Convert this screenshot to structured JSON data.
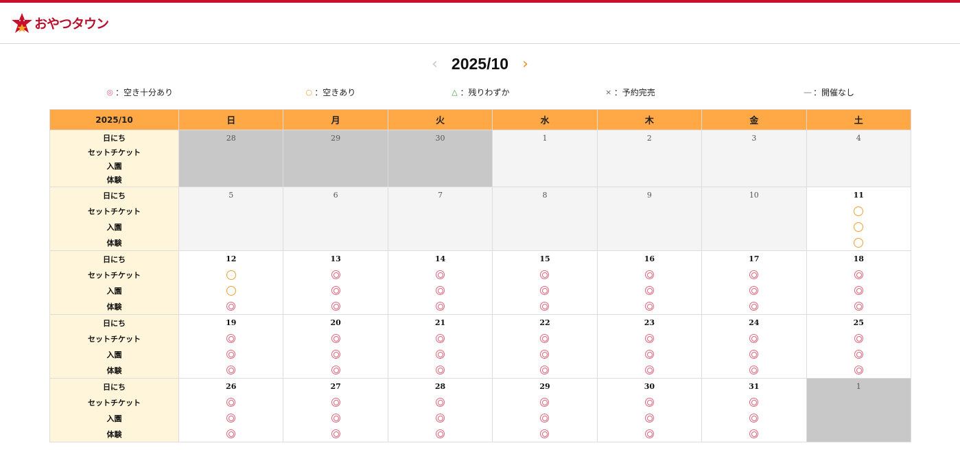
{
  "brand": {
    "name": "おやつタウン",
    "color": "#b8122e"
  },
  "nav": {
    "month": "2025/10",
    "prev_icon": "chevron-left-icon",
    "next_icon": "chevron-right-icon"
  },
  "legend": [
    {
      "symbol": "◎",
      "text": "：空き十分あり",
      "color": "#e0647a"
    },
    {
      "symbol": "○",
      "text": "：空きあり",
      "color": "#f0a030"
    },
    {
      "symbol": "△",
      "text": "：残りわずか",
      "color": "#3aa040"
    },
    {
      "symbol": "×",
      "text": "：予約完売",
      "color": "#666666"
    },
    {
      "symbol": "―",
      "text": "：開催なし",
      "color": "#666666"
    }
  ],
  "calendar": {
    "corner": "2025/10",
    "weekdays": [
      "日",
      "月",
      "火",
      "水",
      "木",
      "金",
      "土"
    ],
    "row_labels": [
      "日にち",
      "セットチケット",
      "入園",
      "体験"
    ],
    "weeks": [
      [
        {
          "d": "28",
          "s": "out",
          "m": []
        },
        {
          "d": "29",
          "s": "out",
          "m": []
        },
        {
          "d": "30",
          "s": "out",
          "m": []
        },
        {
          "d": "1",
          "s": "closed",
          "m": []
        },
        {
          "d": "2",
          "s": "closed",
          "m": []
        },
        {
          "d": "3",
          "s": "closed",
          "m": []
        },
        {
          "d": "4",
          "s": "closed",
          "m": []
        }
      ],
      [
        {
          "d": "5",
          "s": "closed",
          "m": []
        },
        {
          "d": "6",
          "s": "closed",
          "m": []
        },
        {
          "d": "7",
          "s": "closed",
          "m": []
        },
        {
          "d": "8",
          "s": "closed",
          "m": []
        },
        {
          "d": "9",
          "s": "closed",
          "m": []
        },
        {
          "d": "10",
          "s": "closed",
          "m": []
        },
        {
          "d": "11",
          "s": "open",
          "m": [
            "available",
            "available",
            "available"
          ]
        }
      ],
      [
        {
          "d": "12",
          "s": "open",
          "m": [
            "available",
            "available",
            "plenty"
          ]
        },
        {
          "d": "13",
          "s": "open",
          "m": [
            "plenty",
            "plenty",
            "plenty"
          ]
        },
        {
          "d": "14",
          "s": "open",
          "m": [
            "plenty",
            "plenty",
            "plenty"
          ]
        },
        {
          "d": "15",
          "s": "open",
          "m": [
            "plenty",
            "plenty",
            "plenty"
          ]
        },
        {
          "d": "16",
          "s": "open",
          "m": [
            "plenty",
            "plenty",
            "plenty"
          ]
        },
        {
          "d": "17",
          "s": "open",
          "m": [
            "plenty",
            "plenty",
            "plenty"
          ]
        },
        {
          "d": "18",
          "s": "open",
          "m": [
            "plenty",
            "plenty",
            "plenty"
          ]
        }
      ],
      [
        {
          "d": "19",
          "s": "open",
          "m": [
            "plenty",
            "plenty",
            "plenty"
          ]
        },
        {
          "d": "20",
          "s": "open",
          "m": [
            "plenty",
            "plenty",
            "plenty"
          ]
        },
        {
          "d": "21",
          "s": "open",
          "m": [
            "plenty",
            "plenty",
            "plenty"
          ]
        },
        {
          "d": "22",
          "s": "open",
          "m": [
            "plenty",
            "plenty",
            "plenty"
          ]
        },
        {
          "d": "23",
          "s": "open",
          "m": [
            "plenty",
            "plenty",
            "plenty"
          ]
        },
        {
          "d": "24",
          "s": "open",
          "m": [
            "plenty",
            "plenty",
            "plenty"
          ]
        },
        {
          "d": "25",
          "s": "open",
          "m": [
            "plenty",
            "plenty",
            "plenty"
          ]
        }
      ],
      [
        {
          "d": "26",
          "s": "open",
          "m": [
            "plenty",
            "plenty",
            "plenty"
          ]
        },
        {
          "d": "27",
          "s": "open",
          "m": [
            "plenty",
            "plenty",
            "plenty"
          ]
        },
        {
          "d": "28",
          "s": "open",
          "m": [
            "plenty",
            "plenty",
            "plenty"
          ]
        },
        {
          "d": "29",
          "s": "open",
          "m": [
            "plenty",
            "plenty",
            "plenty"
          ]
        },
        {
          "d": "30",
          "s": "open",
          "m": [
            "plenty",
            "plenty",
            "plenty"
          ]
        },
        {
          "d": "31",
          "s": "open",
          "m": [
            "plenty",
            "plenty",
            "plenty"
          ]
        },
        {
          "d": "1",
          "s": "out",
          "m": []
        }
      ]
    ]
  }
}
